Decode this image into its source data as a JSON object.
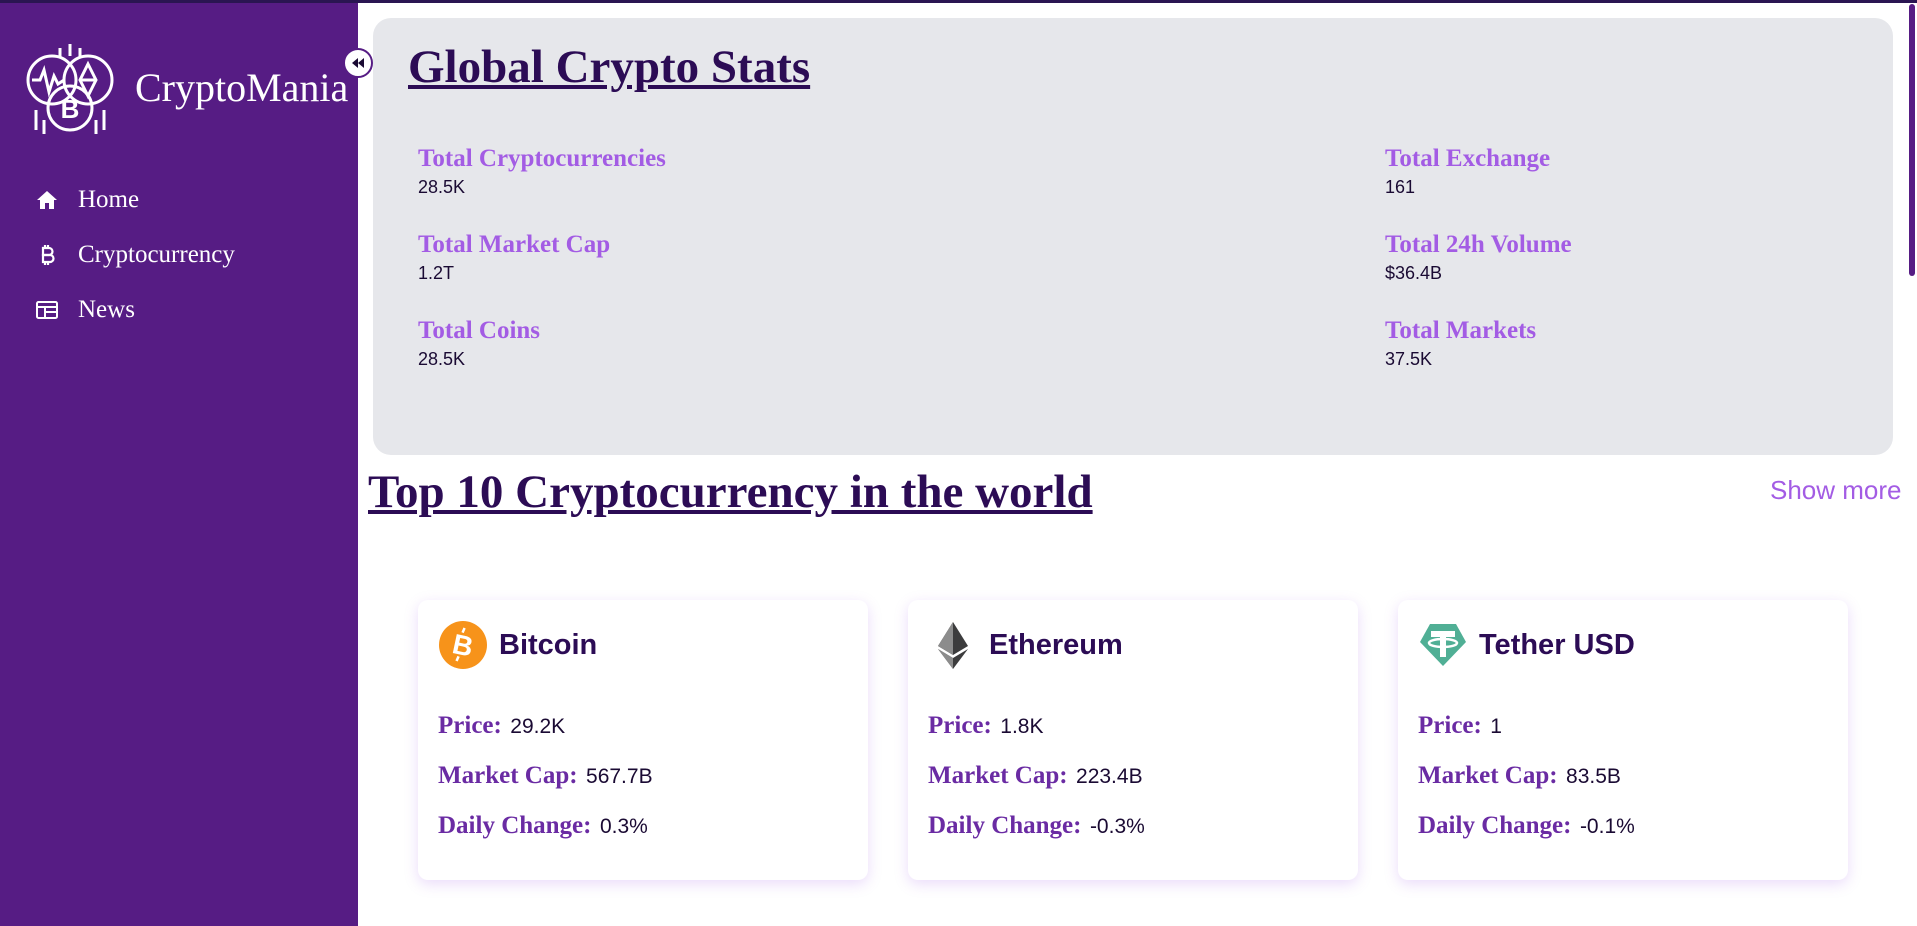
{
  "sidebar": {
    "brand": "CryptoMania",
    "nav": [
      {
        "label": "Home",
        "icon": "home-icon"
      },
      {
        "label": "Cryptocurrency",
        "icon": "bitcoin-icon"
      },
      {
        "label": "News",
        "icon": "news-icon"
      }
    ],
    "colors": {
      "background": "#561c84"
    }
  },
  "global_stats": {
    "title": "Global Crypto Stats",
    "stats": [
      {
        "label": "Total Cryptocurrencies",
        "value": "28.5K"
      },
      {
        "label": "Total Exchange",
        "value": "161"
      },
      {
        "label": "Total Market Cap",
        "value": "1.2T"
      },
      {
        "label": "Total 24h Volume",
        "value": "$36.4B"
      },
      {
        "label": "Total Coins",
        "value": "28.5K"
      },
      {
        "label": "Total Markets",
        "value": "37.5K"
      }
    ]
  },
  "top10": {
    "title": "Top 10 Cryptocurrency in the world",
    "show_more": "Show more",
    "labels": {
      "price": "Price:",
      "market_cap": "Market Cap:",
      "daily_change": "Daily Change:"
    },
    "coins": [
      {
        "name": "Bitcoin",
        "icon": "bitcoin-coin-icon",
        "color": "#f7931a",
        "price": "29.2K",
        "market_cap": "567.7B",
        "daily_change": "0.3%"
      },
      {
        "name": "Ethereum",
        "icon": "ethereum-coin-icon",
        "color": "#3c3c3d",
        "price": "1.8K",
        "market_cap": "223.4B",
        "daily_change": "-0.3%"
      },
      {
        "name": "Tether USD",
        "icon": "tether-coin-icon",
        "color": "#50af95",
        "price": "1",
        "market_cap": "83.5B",
        "daily_change": "-0.1%"
      }
    ]
  },
  "colors": {
    "accent": "#a35ce4",
    "heading": "#2c0c55",
    "panel": "#e6e7eb"
  }
}
